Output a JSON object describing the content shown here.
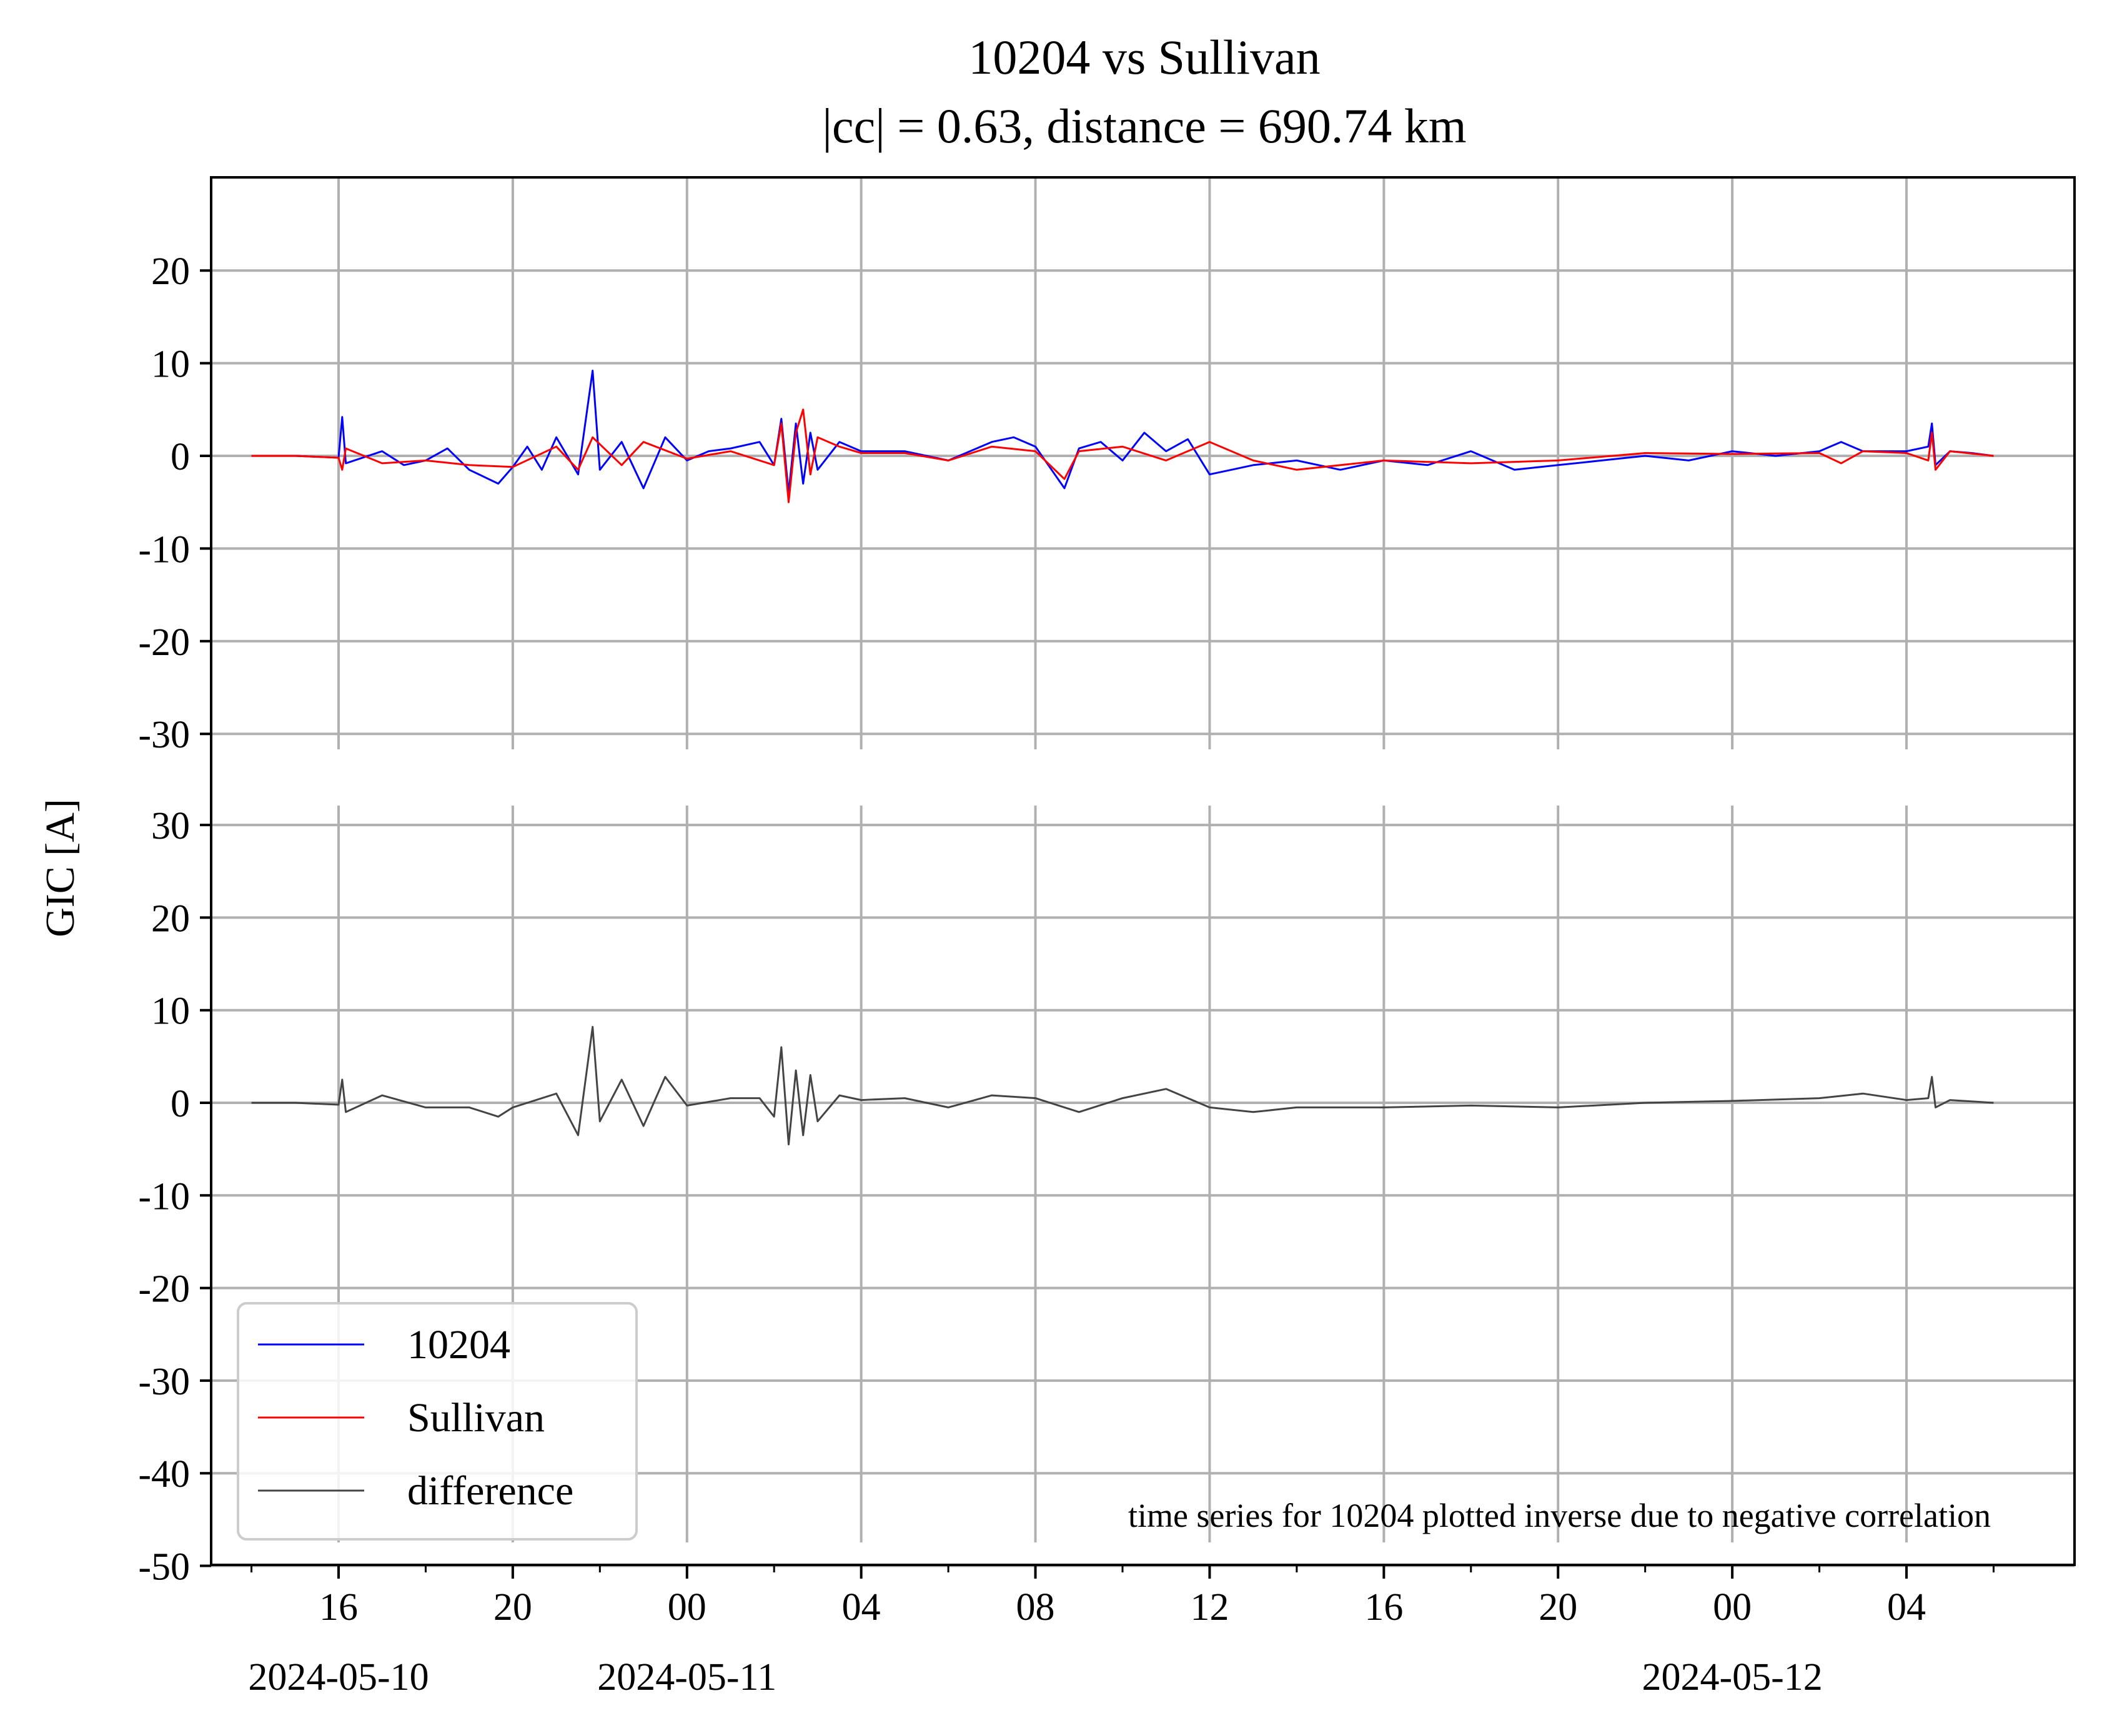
{
  "chart_data": {
    "type": "line",
    "title": "10204 vs Sullivan",
    "subtitle": "|cc| = 0.63, distance = 690.74 km",
    "ylabel": "GIC [A]",
    "annotation": "time series for 10204 plotted inverse due to negative correlation",
    "legend": {
      "position": "lower-left",
      "entries": [
        {
          "label": "10204",
          "color": "#0000ff"
        },
        {
          "label": "Sullivan",
          "color": "#ff0000"
        },
        {
          "label": "difference",
          "color": "#444444"
        }
      ]
    },
    "x_axis": {
      "type": "datetime",
      "range": [
        "2024-05-10 15:00",
        "2024-05-12 07:50"
      ],
      "major_ticks": [
        "2024-05-10 16:00",
        "2024-05-10 20:00",
        "2024-05-11 00:00",
        "2024-05-11 04:00",
        "2024-05-11 08:00",
        "2024-05-11 12:00",
        "2024-05-11 16:00",
        "2024-05-11 20:00",
        "2024-05-12 00:00",
        "2024-05-12 04:00"
      ],
      "tick_labels": [
        "16",
        "20",
        "00",
        "04",
        "08",
        "12",
        "16",
        "20",
        "00",
        "04"
      ],
      "date_labels": [
        {
          "at": "2024-05-10 16:00",
          "text": "2024-05-10"
        },
        {
          "at": "2024-05-11 00:00",
          "text": "2024-05-11"
        },
        {
          "at": "2024-05-12 00:00",
          "text": "2024-05-12"
        }
      ],
      "minor_interval_hours": 2
    },
    "grid": true,
    "panels": [
      {
        "name": "top",
        "ylim": [
          -30,
          30
        ],
        "yticks": [
          -30,
          -20,
          -10,
          0,
          10,
          20
        ],
        "tick_labels": [
          "-30",
          "-20",
          "-10",
          "0",
          "10",
          "20"
        ],
        "series": [
          {
            "name": "10204",
            "color": "#0000ff",
            "x": [
              "2024-05-10 14:00",
              "2024-05-10 15:00",
              "2024-05-10 16:00",
              "2024-05-10 16:05",
              "2024-05-10 16:10",
              "2024-05-10 17:00",
              "2024-05-10 17:30",
              "2024-05-10 18:00",
              "2024-05-10 18:30",
              "2024-05-10 19:00",
              "2024-05-10 19:40",
              "2024-05-10 20:00",
              "2024-05-10 20:20",
              "2024-05-10 20:40",
              "2024-05-10 21:00",
              "2024-05-10 21:30",
              "2024-05-10 21:50",
              "2024-05-10 22:00",
              "2024-05-10 22:30",
              "2024-05-10 23:00",
              "2024-05-10 23:30",
              "2024-05-11 00:00",
              "2024-05-11 00:30",
              "2024-05-11 01:00",
              "2024-05-11 01:40",
              "2024-05-11 02:00",
              "2024-05-11 02:10",
              "2024-05-11 02:20",
              "2024-05-11 02:30",
              "2024-05-11 02:40",
              "2024-05-11 02:50",
              "2024-05-11 03:00",
              "2024-05-11 03:30",
              "2024-05-11 04:00",
              "2024-05-11 05:00",
              "2024-05-11 06:00",
              "2024-05-11 07:00",
              "2024-05-11 07:30",
              "2024-05-11 08:00",
              "2024-05-11 08:40",
              "2024-05-11 09:00",
              "2024-05-11 09:30",
              "2024-05-11 10:00",
              "2024-05-11 10:30",
              "2024-05-11 11:00",
              "2024-05-11 11:30",
              "2024-05-11 12:00",
              "2024-05-11 12:30",
              "2024-05-11 13:00",
              "2024-05-11 14:00",
              "2024-05-11 15:00",
              "2024-05-11 16:00",
              "2024-05-11 17:00",
              "2024-05-11 18:00",
              "2024-05-11 19:00",
              "2024-05-11 20:00",
              "2024-05-11 21:00",
              "2024-05-11 22:00",
              "2024-05-11 23:00",
              "2024-05-12 00:00",
              "2024-05-12 01:00",
              "2024-05-12 02:00",
              "2024-05-12 02:30",
              "2024-05-12 03:00",
              "2024-05-12 04:00",
              "2024-05-12 04:30",
              "2024-05-12 04:35",
              "2024-05-12 04:40",
              "2024-05-12 05:00",
              "2024-05-12 05:30",
              "2024-05-12 06:00"
            ],
            "values": [
              0,
              0,
              -0.2,
              4.2,
              -0.8,
              0.5,
              -1.0,
              -0.5,
              0.8,
              -1.5,
              -3.0,
              -1.2,
              1.0,
              -1.5,
              2.0,
              -2.0,
              9.2,
              -1.5,
              1.5,
              -3.5,
              2.0,
              -0.5,
              0.5,
              0.8,
              1.5,
              -1.0,
              4.0,
              -4.0,
              3.5,
              -3.0,
              2.5,
              -1.5,
              1.5,
              0.5,
              0.5,
              -0.5,
              1.5,
              2.0,
              1.0,
              -3.5,
              0.8,
              1.5,
              -0.5,
              2.5,
              0.5,
              1.8,
              -2.0,
              -1.5,
              -1.0,
              -0.5,
              -1.5,
              -0.5,
              -1.0,
              0.5,
              -1.5,
              -1.0,
              -0.5,
              0.0,
              -0.5,
              0.5,
              0.0,
              0.5,
              1.5,
              0.5,
              0.5,
              1.0,
              3.5,
              -1.0,
              0.5,
              0.3,
              0.0
            ]
          },
          {
            "name": "Sullivan",
            "color": "#ff0000",
            "x": [
              "2024-05-10 14:00",
              "2024-05-10 15:00",
              "2024-05-10 16:00",
              "2024-05-10 16:05",
              "2024-05-10 16:10",
              "2024-05-10 17:00",
              "2024-05-10 18:00",
              "2024-05-10 19:00",
              "2024-05-10 20:00",
              "2024-05-10 21:00",
              "2024-05-10 21:30",
              "2024-05-10 21:50",
              "2024-05-10 22:30",
              "2024-05-10 23:00",
              "2024-05-11 00:00",
              "2024-05-11 01:00",
              "2024-05-11 02:00",
              "2024-05-11 02:10",
              "2024-05-11 02:20",
              "2024-05-11 02:30",
              "2024-05-11 02:40",
              "2024-05-11 02:50",
              "2024-05-11 03:00",
              "2024-05-11 03:30",
              "2024-05-11 04:00",
              "2024-05-11 05:00",
              "2024-05-11 06:00",
              "2024-05-11 07:00",
              "2024-05-11 08:00",
              "2024-05-11 08:40",
              "2024-05-11 09:00",
              "2024-05-11 10:00",
              "2024-05-11 11:00",
              "2024-05-11 12:00",
              "2024-05-11 13:00",
              "2024-05-11 14:00",
              "2024-05-11 16:00",
              "2024-05-11 18:00",
              "2024-05-11 20:00",
              "2024-05-11 22:00",
              "2024-05-12 00:00",
              "2024-05-12 02:00",
              "2024-05-12 02:30",
              "2024-05-12 03:00",
              "2024-05-12 04:00",
              "2024-05-12 04:30",
              "2024-05-12 04:35",
              "2024-05-12 04:40",
              "2024-05-12 05:00",
              "2024-05-12 06:00"
            ],
            "values": [
              0,
              0,
              -0.2,
              -1.5,
              0.8,
              -0.8,
              -0.5,
              -1.0,
              -1.2,
              1.0,
              -1.5,
              2.0,
              -1.0,
              1.5,
              -0.3,
              0.5,
              -1.0,
              3.5,
              -5.0,
              2.5,
              5.0,
              -2.0,
              2.0,
              1.0,
              0.3,
              0.3,
              -0.5,
              1.0,
              0.5,
              -2.5,
              0.5,
              1.0,
              -0.5,
              1.5,
              -0.5,
              -1.5,
              -0.5,
              -0.8,
              -0.5,
              0.3,
              0.2,
              0.3,
              -0.8,
              0.5,
              0.3,
              -0.5,
              2.5,
              -1.5,
              0.5,
              0.0
            ]
          }
        ]
      },
      {
        "name": "bottom",
        "ylim": [
          -50,
          30
        ],
        "yticks": [
          -50,
          -40,
          -30,
          -20,
          -10,
          0,
          10,
          20,
          30
        ],
        "tick_labels": [
          "-50",
          "-40",
          "-30",
          "-20",
          "-10",
          "0",
          "10",
          "20",
          "30"
        ],
        "series": [
          {
            "name": "difference",
            "color": "#444444",
            "x": [
              "2024-05-10 14:00",
              "2024-05-10 15:00",
              "2024-05-10 16:00",
              "2024-05-10 16:05",
              "2024-05-10 16:10",
              "2024-05-10 17:00",
              "2024-05-10 18:00",
              "2024-05-10 19:00",
              "2024-05-10 19:40",
              "2024-05-10 20:00",
              "2024-05-10 21:00",
              "2024-05-10 21:30",
              "2024-05-10 21:50",
              "2024-05-10 22:00",
              "2024-05-10 22:30",
              "2024-05-10 23:00",
              "2024-05-10 23:30",
              "2024-05-11 00:00",
              "2024-05-11 01:00",
              "2024-05-11 01:40",
              "2024-05-11 02:00",
              "2024-05-11 02:10",
              "2024-05-11 02:20",
              "2024-05-11 02:30",
              "2024-05-11 02:40",
              "2024-05-11 02:50",
              "2024-05-11 03:00",
              "2024-05-11 03:30",
              "2024-05-11 04:00",
              "2024-05-11 05:00",
              "2024-05-11 06:00",
              "2024-05-11 07:00",
              "2024-05-11 08:00",
              "2024-05-11 09:00",
              "2024-05-11 10:00",
              "2024-05-11 11:00",
              "2024-05-11 12:00",
              "2024-05-11 13:00",
              "2024-05-11 14:00",
              "2024-05-11 16:00",
              "2024-05-11 18:00",
              "2024-05-11 20:00",
              "2024-05-11 22:00",
              "2024-05-12 00:00",
              "2024-05-12 02:00",
              "2024-05-12 03:00",
              "2024-05-12 04:00",
              "2024-05-12 04:30",
              "2024-05-12 04:35",
              "2024-05-12 04:40",
              "2024-05-12 05:00",
              "2024-05-12 06:00"
            ],
            "values": [
              0,
              0,
              -0.2,
              2.5,
              -1.0,
              0.8,
              -0.5,
              -0.5,
              -1.5,
              -0.5,
              1.0,
              -3.5,
              8.2,
              -2.0,
              2.5,
              -2.5,
              2.8,
              -0.3,
              0.5,
              0.5,
              -1.5,
              6.0,
              -4.5,
              3.5,
              -3.5,
              3.0,
              -2.0,
              0.8,
              0.3,
              0.5,
              -0.5,
              0.8,
              0.5,
              -1.0,
              0.5,
              1.5,
              -0.5,
              -1.0,
              -0.5,
              -0.5,
              -0.3,
              -0.5,
              0.0,
              0.2,
              0.5,
              1.0,
              0.3,
              0.5,
              2.8,
              -0.5,
              0.3,
              0.0
            ]
          }
        ]
      }
    ]
  }
}
